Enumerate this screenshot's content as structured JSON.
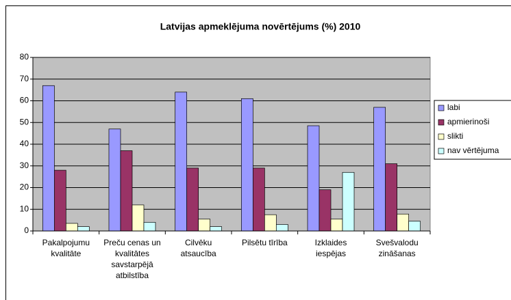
{
  "chart_data": {
    "type": "bar",
    "title": "Latvijas apmeklējuma novērtējums (%)   2010",
    "categories": [
      "Pakalpojumu kvalitāte",
      "Preču cenas un kvalitātes savstarpējā atbilstība",
      "Cilvēku atsaucība",
      "Pilsētu tīrība",
      "Izklaides iespējas",
      "Svešvalodu zināšanas"
    ],
    "series": [
      {
        "name": "labi",
        "color": "#9999ff",
        "values": [
          67,
          47,
          64,
          61,
          48.5,
          57
        ]
      },
      {
        "name": "apmierinoši",
        "color": "#993366",
        "values": [
          28,
          37,
          29,
          29,
          19,
          31
        ]
      },
      {
        "name": "slikti",
        "color": "#ffffcc",
        "values": [
          3.5,
          12,
          5.5,
          7.5,
          5.5,
          7.8
        ]
      },
      {
        "name": "nav vērtējuma",
        "color": "#ccffff",
        "values": [
          2,
          4,
          2,
          3,
          27,
          4.5
        ]
      }
    ],
    "ylim": [
      0,
      80
    ],
    "yticks": [
      0,
      10,
      20,
      30,
      40,
      50,
      60,
      70,
      80
    ],
    "grid": true,
    "legend": "right"
  }
}
